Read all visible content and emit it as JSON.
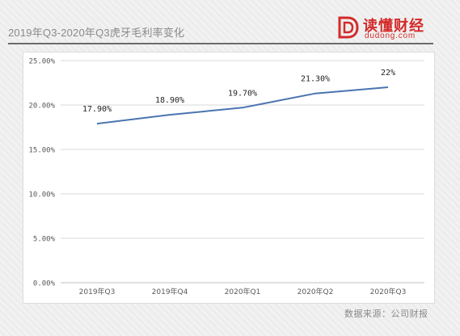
{
  "header": {
    "title": "2019年Q3-2020年Q3虎牙毛利率变化",
    "logo_text": "读懂财经",
    "logo_domain": "dudong.com"
  },
  "footer": {
    "source": "数据来源：公司财报"
  },
  "colors": {
    "line": "#4a74b0",
    "grid": "#d9d9d9",
    "brand": "#d42a2a"
  },
  "chart_data": {
    "type": "line",
    "title": "",
    "xlabel": "",
    "ylabel": "",
    "categories": [
      "2019年Q3",
      "2019年Q4",
      "2020年Q1",
      "2020年Q2",
      "2020年Q3"
    ],
    "series": [
      {
        "values": [
          17.9,
          18.9,
          19.7,
          21.3,
          22.0
        ],
        "labels": [
          "17.90%",
          "18.90%",
          "19.70%",
          "21.30%",
          "22%"
        ]
      }
    ],
    "ylim": [
      0,
      25
    ],
    "yticks": [
      "0.00%",
      "5.00%",
      "10.00%",
      "15.00%",
      "20.00%",
      "25.00%"
    ],
    "grid": true,
    "legend": "none"
  }
}
